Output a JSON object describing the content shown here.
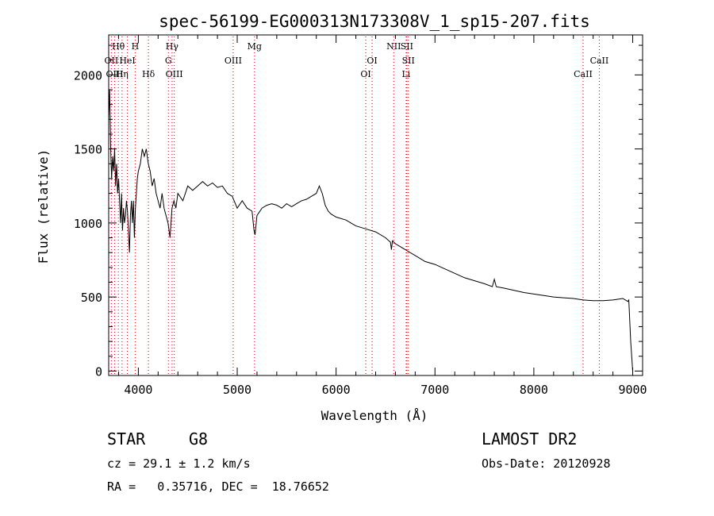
{
  "chart_data": {
    "type": "line",
    "title": "spec-56199-EG000313N173308V_1_sp15-207.fits",
    "xlabel": "Wavelength (Å)",
    "ylabel": "Flux (relative)",
    "xlim": [
      3700,
      9100
    ],
    "ylim": [
      -30,
      2270
    ],
    "x_ticks": [
      4000,
      5000,
      6000,
      7000,
      8000,
      9000
    ],
    "x_tick_labels": [
      "4000",
      "5000",
      "6000",
      "7000",
      "8000",
      "9000"
    ],
    "y_ticks": [
      0,
      500,
      1000,
      1500,
      2000
    ],
    "y_tick_labels": [
      "0",
      "500",
      "1000",
      "1500",
      "2000"
    ],
    "grid": false,
    "line_color": "#000000",
    "marker_line_color": "#cc0000",
    "series": [
      {
        "x": [
          3700,
          3710,
          3720,
          3730,
          3740,
          3750,
          3760,
          3770,
          3780,
          3790,
          3800,
          3810,
          3820,
          3830,
          3840,
          3850,
          3860,
          3870,
          3880,
          3890,
          3900,
          3910,
          3920,
          3930,
          3940,
          3950,
          3960,
          3970,
          3980,
          3990,
          4000,
          4020,
          4040,
          4060,
          4080,
          4100,
          4120,
          4140,
          4160,
          4180,
          4200,
          4220,
          4240,
          4260,
          4280,
          4300,
          4320,
          4340,
          4360,
          4380,
          4400,
          4450,
          4500,
          4550,
          4600,
          4650,
          4700,
          4750,
          4800,
          4850,
          4900,
          4950,
          5000,
          5050,
          5100,
          5150,
          5170,
          5180,
          5200,
          5250,
          5300,
          5350,
          5400,
          5450,
          5500,
          5550,
          5600,
          5650,
          5700,
          5750,
          5800,
          5830,
          5860,
          5890,
          5920,
          5950,
          6000,
          6100,
          6200,
          6300,
          6400,
          6500,
          6550,
          6560,
          6570,
          6600,
          6700,
          6800,
          6900,
          7000,
          7100,
          7200,
          7300,
          7400,
          7500,
          7580,
          7600,
          7620,
          7700,
          7800,
          7900,
          8000,
          8100,
          8200,
          8300,
          8400,
          8500,
          8600,
          8700,
          8800,
          8900,
          8950,
          8960,
          8980,
          9000
        ],
        "y": [
          1700,
          1900,
          1500,
          1300,
          1450,
          1350,
          1500,
          1250,
          1400,
          1200,
          1300,
          1150,
          1000,
          1200,
          950,
          1100,
          1000,
          1050,
          1150,
          1080,
          950,
          800,
          1050,
          1150,
          1000,
          1150,
          900,
          1100,
          1200,
          1300,
          1350,
          1400,
          1500,
          1450,
          1500,
          1400,
          1350,
          1250,
          1300,
          1200,
          1150,
          1100,
          1200,
          1100,
          1050,
          1000,
          900,
          1100,
          1150,
          1100,
          1200,
          1150,
          1250,
          1220,
          1250,
          1280,
          1250,
          1270,
          1240,
          1250,
          1200,
          1180,
          1100,
          1150,
          1100,
          1080,
          950,
          920,
          1050,
          1100,
          1120,
          1130,
          1120,
          1100,
          1130,
          1110,
          1130,
          1150,
          1160,
          1180,
          1200,
          1250,
          1200,
          1120,
          1080,
          1060,
          1040,
          1020,
          980,
          960,
          940,
          900,
          870,
          820,
          880,
          860,
          820,
          780,
          740,
          720,
          690,
          660,
          630,
          610,
          590,
          570,
          620,
          570,
          560,
          545,
          530,
          520,
          510,
          500,
          495,
          490,
          480,
          475,
          475,
          480,
          490,
          470,
          480,
          200,
          0
        ]
      }
    ],
    "line_markers": [
      {
        "name": "Hθ",
        "x": 3798,
        "row": 0
      },
      {
        "name": "OII",
        "x": 3727,
        "row": 1
      },
      {
        "name": "OIII",
        "x": 3760,
        "row": 2
      },
      {
        "name": "Hη",
        "x": 3835,
        "row": 2
      },
      {
        "name": "HeI",
        "x": 3889,
        "row": 1
      },
      {
        "name": "H",
        "x": 3968,
        "row": 0
      },
      {
        "name": "Hδ",
        "x": 4102,
        "row": 2
      },
      {
        "name": "Hγ",
        "x": 4341,
        "row": 0
      },
      {
        "name": "G",
        "x": 4304,
        "row": 1
      },
      {
        "name": "OIII",
        "x": 4363,
        "row": 2
      },
      {
        "name": "OIII",
        "x": 4959,
        "row": 1
      },
      {
        "name": "Mg",
        "x": 5175,
        "row": 0
      },
      {
        "name": "OI",
        "x": 6300,
        "row": 2
      },
      {
        "name": "OI",
        "x": 6364,
        "row": 1
      },
      {
        "name": "NII",
        "x": 6583,
        "row": 0
      },
      {
        "name": "SII",
        "x": 6716,
        "row": 0
      },
      {
        "name": "SII",
        "x": 6731,
        "row": 1
      },
      {
        "name": "Li",
        "x": 6708,
        "row": 2
      },
      {
        "name": "CaII",
        "x": 8498,
        "row": 2
      },
      {
        "name": "CaII",
        "x": 8662,
        "row": 1
      }
    ]
  },
  "info": {
    "class_label": "STAR",
    "subclass": "G8",
    "survey": "LAMOST DR2",
    "cz": "cz = 29.1 ± 1.2 km/s",
    "obs_date": "Obs-Date: 20120928",
    "coords": "RA =   0.35716, DEC =  18.76652"
  }
}
